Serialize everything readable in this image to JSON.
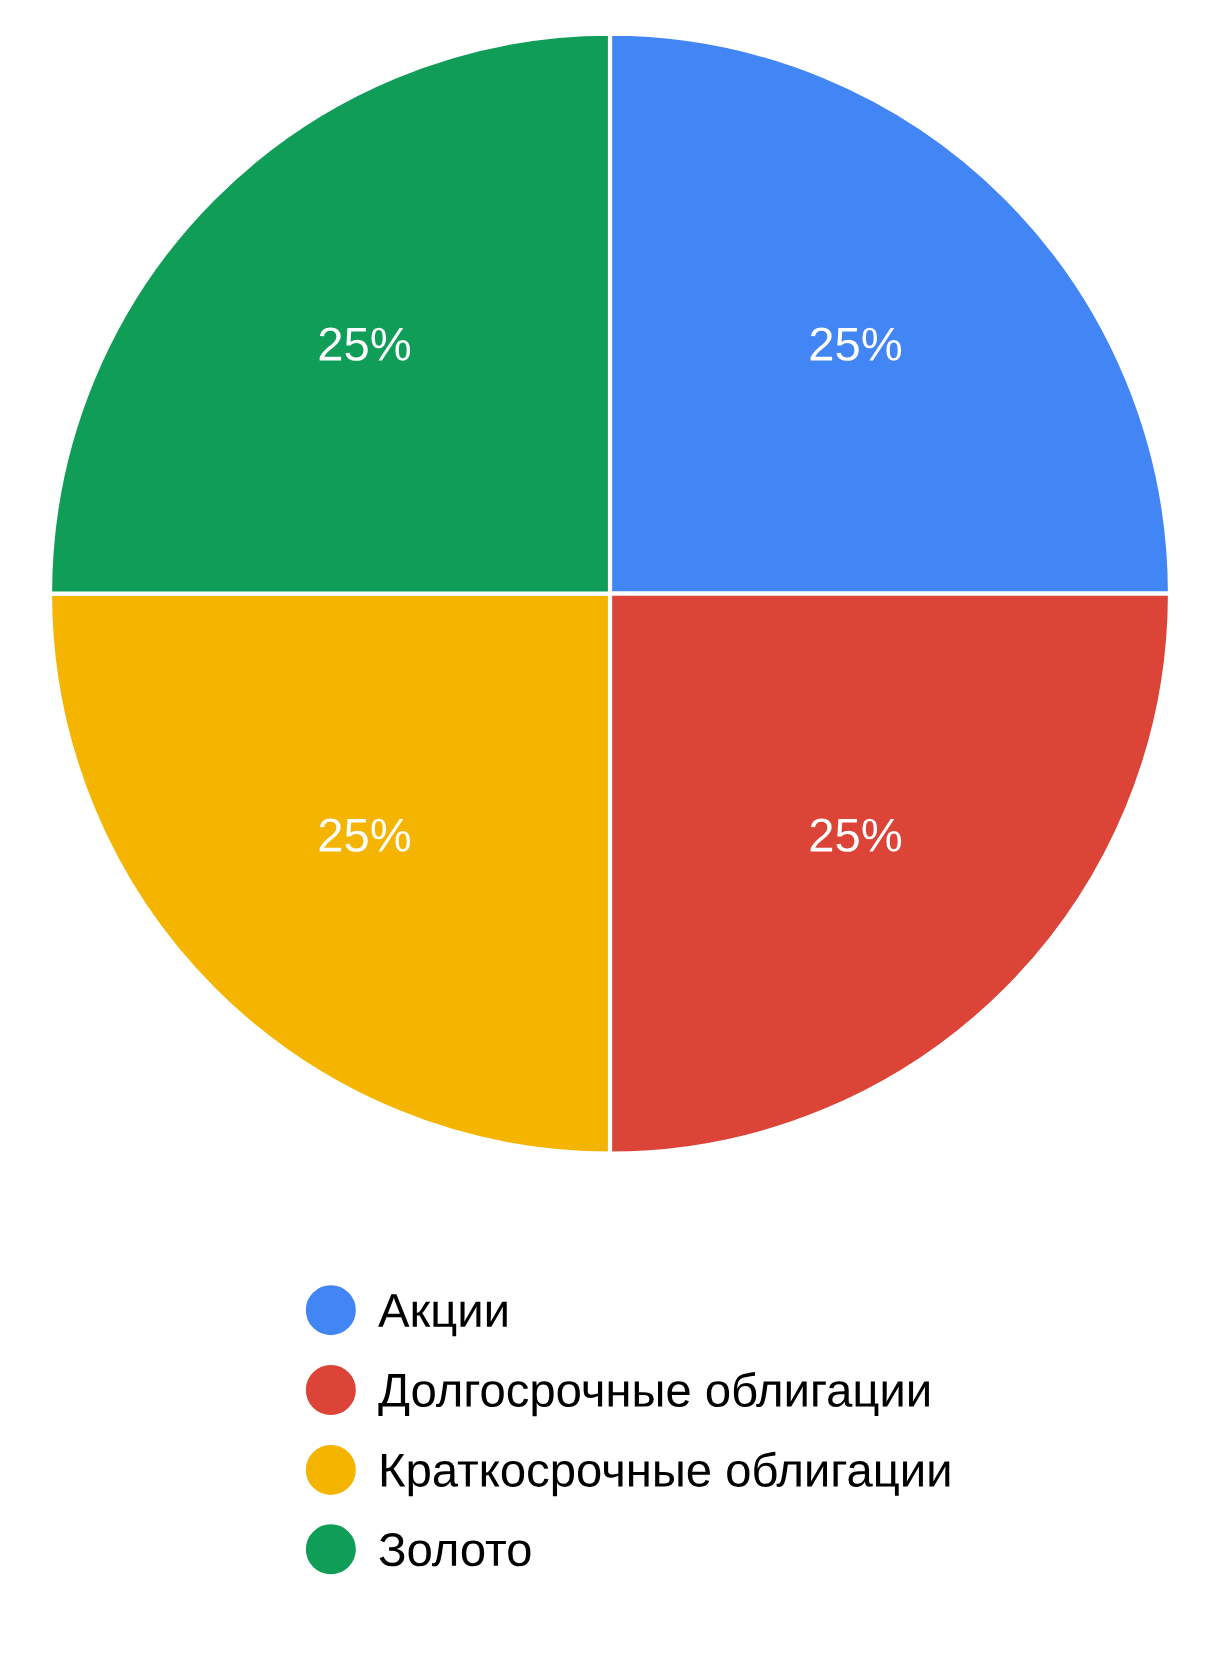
{
  "chart_data": {
    "type": "pie",
    "categories": [
      "Акции",
      "Долгосрочные облигации",
      "Краткосрочные облигации",
      "Золото"
    ],
    "values": [
      25,
      25,
      25,
      25
    ],
    "colors": [
      "#4285f4",
      "#db4437",
      "#f4b400",
      "#0f9d58"
    ],
    "value_labels": [
      "25%",
      "25%",
      "25%",
      "25%"
    ],
    "legend": "bottom"
  }
}
